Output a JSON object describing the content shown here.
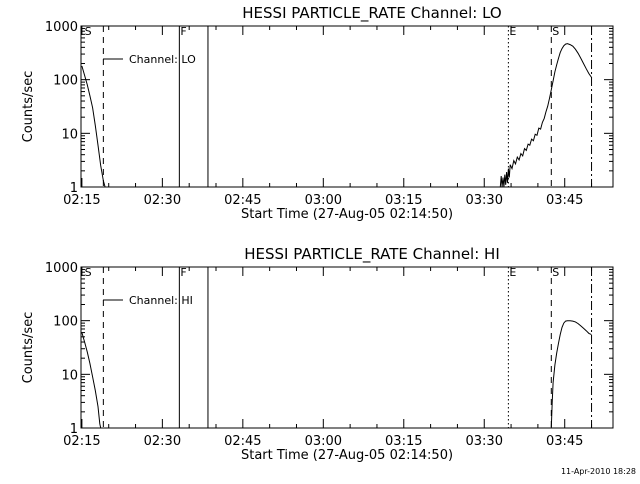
{
  "footer": {
    "timestamp": "11-Apr-2010 18:28"
  },
  "chart_data": [
    {
      "type": "line",
      "title": "HESSI PARTICLE_RATE Channel: LO",
      "xlabel": "Start Time (27-Aug-05 02:14:50)",
      "ylabel": "Counts/sec",
      "yscale": "log",
      "xlim": [
        "02:14:50",
        "03:54:00"
      ],
      "ylim": [
        1,
        1000
      ],
      "xticks": [
        "02:15",
        "02:30",
        "02:45",
        "03:00",
        "03:15",
        "03:30",
        "03:45"
      ],
      "yticks": [
        "1",
        "10",
        "100",
        "1000"
      ],
      "legend": {
        "label": "Channel: LO",
        "placement": "top-left"
      },
      "markers": [
        {
          "label": "S",
          "time": "02:15:20",
          "style": "none"
        },
        {
          "label": "",
          "time": "02:19:00",
          "style": "dashed"
        },
        {
          "label": "F",
          "time": "02:33:10",
          "style": "solid"
        },
        {
          "label": "",
          "time": "02:38:30",
          "style": "solid"
        },
        {
          "label": "E",
          "time": "03:34:30",
          "style": "dotted"
        },
        {
          "label": "S",
          "time": "03:42:30",
          "style": "dashed"
        },
        {
          "label": "",
          "time": "03:50:00",
          "style": "dashdot"
        }
      ],
      "series": [
        {
          "segments": [
            [
              [
                "02:15:00",
                180
              ],
              [
                "02:15:30",
                120
              ],
              [
                "02:16:00",
                80
              ],
              [
                "02:16:30",
                50
              ],
              [
                "02:17:00",
                30
              ],
              [
                "02:17:30",
                14
              ],
              [
                "02:18:00",
                6
              ],
              [
                "02:18:30",
                2.5
              ],
              [
                "02:19:00",
                1.3
              ],
              [
                "02:19:20",
                1
              ]
            ],
            [
              [
                "03:33:00",
                1
              ],
              [
                "03:33:10",
                1.6
              ],
              [
                "03:33:20",
                1
              ],
              [
                "03:33:30",
                1.5
              ],
              [
                "03:33:40",
                1
              ],
              [
                "03:33:50",
                1.7
              ],
              [
                "03:34:00",
                1.1
              ],
              [
                "03:34:10",
                1.9
              ],
              [
                "03:34:20",
                1.2
              ],
              [
                "03:34:30",
                2.2
              ],
              [
                "03:34:40",
                1.5
              ],
              [
                "03:34:50",
                2.6
              ],
              [
                "03:35:10",
                2.2
              ],
              [
                "03:35:30",
                3.1
              ],
              [
                "03:35:50",
                2.7
              ],
              [
                "03:36:10",
                3.6
              ],
              [
                "03:36:30",
                3.2
              ],
              [
                "03:36:50",
                4.2
              ],
              [
                "03:37:10",
                3.8
              ],
              [
                "03:37:30",
                5.2
              ],
              [
                "03:37:50",
                4.8
              ],
              [
                "03:38:10",
                6.3
              ],
              [
                "03:38:30",
                6.0
              ],
              [
                "03:38:50",
                7.8
              ],
              [
                "03:39:10",
                7.3
              ],
              [
                "03:39:30",
                9.6
              ],
              [
                "03:39:50",
                9.2
              ],
              [
                "03:40:10",
                12.5
              ],
              [
                "03:40:30",
                12.0
              ],
              [
                "03:40:50",
                16
              ],
              [
                "03:41:10",
                19
              ],
              [
                "03:41:30",
                25
              ],
              [
                "03:41:50",
                32
              ],
              [
                "03:42:10",
                45
              ],
              [
                "03:42:30",
                65
              ],
              [
                "03:42:50",
                95
              ],
              [
                "03:43:10",
                140
              ],
              [
                "03:43:30",
                190
              ],
              [
                "03:43:50",
                250
              ],
              [
                "03:44:10",
                320
              ],
              [
                "03:44:30",
                380
              ],
              [
                "03:44:50",
                430
              ],
              [
                "03:45:10",
                460
              ],
              [
                "03:45:30",
                470
              ],
              [
                "03:46:00",
                450
              ],
              [
                "03:46:30",
                420
              ],
              [
                "03:47:00",
                370
              ],
              [
                "03:47:30",
                310
              ],
              [
                "03:48:00",
                250
              ],
              [
                "03:48:30",
                200
              ],
              [
                "03:49:00",
                160
              ],
              [
                "03:49:30",
                130
              ],
              [
                "03:50:00",
                110
              ]
            ]
          ]
        }
      ]
    },
    {
      "type": "line",
      "title": "HESSI PARTICLE_RATE Channel: HI",
      "xlabel": "Start Time (27-Aug-05 02:14:50)",
      "ylabel": "Counts/sec",
      "yscale": "log",
      "xlim": [
        "02:14:50",
        "03:54:00"
      ],
      "ylim": [
        1,
        1000
      ],
      "xticks": [
        "02:15",
        "02:30",
        "02:45",
        "03:00",
        "03:15",
        "03:30",
        "03:45"
      ],
      "yticks": [
        "1",
        "10",
        "100",
        "1000"
      ],
      "legend": {
        "label": "Channel: HI",
        "placement": "top-left"
      },
      "markers": [
        {
          "label": "S",
          "time": "02:15:20",
          "style": "none"
        },
        {
          "label": "",
          "time": "02:19:00",
          "style": "dashed"
        },
        {
          "label": "F",
          "time": "02:33:10",
          "style": "solid"
        },
        {
          "label": "",
          "time": "02:38:30",
          "style": "solid"
        },
        {
          "label": "E",
          "time": "03:34:30",
          "style": "dotted"
        },
        {
          "label": "S",
          "time": "03:42:30",
          "style": "dashed"
        },
        {
          "label": "",
          "time": "03:50:00",
          "style": "dashdot"
        }
      ],
      "series": [
        {
          "segments": [
            [
              [
                "02:15:00",
                60
              ],
              [
                "02:15:30",
                40
              ],
              [
                "02:16:00",
                26
              ],
              [
                "02:16:30",
                16
              ],
              [
                "02:17:00",
                9
              ],
              [
                "02:17:30",
                5
              ],
              [
                "02:18:00",
                2.5
              ],
              [
                "02:18:20",
                1.2
              ],
              [
                "02:18:30",
                1
              ]
            ],
            [
              [
                "03:42:30",
                1
              ],
              [
                "03:42:40",
                3
              ],
              [
                "03:42:50",
                7
              ],
              [
                "03:43:10",
                15
              ],
              [
                "03:43:30",
                25
              ],
              [
                "03:43:50",
                38
              ],
              [
                "03:44:10",
                55
              ],
              [
                "03:44:30",
                75
              ],
              [
                "03:44:50",
                90
              ],
              [
                "03:45:10",
                98
              ],
              [
                "03:45:30",
                100
              ],
              [
                "03:46:00",
                100
              ],
              [
                "03:46:30",
                98
              ],
              [
                "03:47:00",
                95
              ],
              [
                "03:47:30",
                88
              ],
              [
                "03:48:00",
                80
              ],
              [
                "03:48:30",
                72
              ],
              [
                "03:49:00",
                65
              ],
              [
                "03:49:30",
                58
              ],
              [
                "03:50:00",
                55
              ]
            ]
          ]
        }
      ]
    }
  ]
}
